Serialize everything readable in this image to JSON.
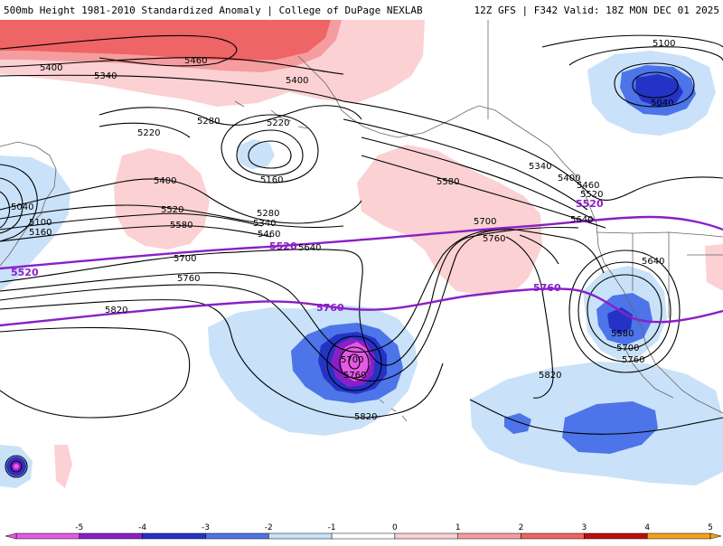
{
  "header": {
    "title": "500mb Height 1981-2010 Standardized Anomaly | College of DuPage NEXLAB",
    "run_info": "12Z GFS | F342 Valid: 18Z MON DEC 01 2025"
  },
  "colors": {
    "purple_contour": "#8a1fc7",
    "neg5": "#e45ae4",
    "neg4": "#8a1fc7",
    "neg3": "#2433c6",
    "neg2": "#4d74e8",
    "neg1": "#c9e2f9",
    "pos1": "#fbd1d3",
    "pos2": "#f59c9e",
    "pos3": "#ef6464",
    "pos4": "#bf0d0d",
    "pos5": "#f3a21a"
  },
  "legend": {
    "ticks": [
      "-5",
      "-4",
      "-3",
      "-2",
      "-1",
      "0",
      "1",
      "2",
      "3",
      "4",
      "5"
    ],
    "segments": [
      "#e45ae4",
      "#8a1fc7",
      "#2433c6",
      "#4d74e8",
      "#c9e2f9",
      "#ffffff",
      "#fbd1d3",
      "#f59c9e",
      "#ef6464",
      "#bf0d0d",
      "#f3a21a"
    ]
  },
  "contour_labels": [
    {
      "text": "5460",
      "kind": "black"
    },
    {
      "text": "5400",
      "kind": "black"
    },
    {
      "text": "5340",
      "kind": "black"
    },
    {
      "text": "5400",
      "kind": "black"
    },
    {
      "text": "5280",
      "kind": "black"
    },
    {
      "text": "5220",
      "kind": "black"
    },
    {
      "text": "5220",
      "kind": "black"
    },
    {
      "text": "5160",
      "kind": "black"
    },
    {
      "text": "5400",
      "kind": "black"
    },
    {
      "text": "5520",
      "kind": "black"
    },
    {
      "text": "5580",
      "kind": "black"
    },
    {
      "text": "5280",
      "kind": "black"
    },
    {
      "text": "5340",
      "kind": "black"
    },
    {
      "text": "5460",
      "kind": "black"
    },
    {
      "text": "5700",
      "kind": "black"
    },
    {
      "text": "5760",
      "kind": "black"
    },
    {
      "text": "5820",
      "kind": "black"
    },
    {
      "text": "5040",
      "kind": "black"
    },
    {
      "text": "5100",
      "kind": "black"
    },
    {
      "text": "5160",
      "kind": "black"
    },
    {
      "text": "5640",
      "kind": "black"
    },
    {
      "text": "5580",
      "kind": "black"
    },
    {
      "text": "5700",
      "kind": "black"
    },
    {
      "text": "5760",
      "kind": "black"
    },
    {
      "text": "5700",
      "kind": "black"
    },
    {
      "text": "5760",
      "kind": "black"
    },
    {
      "text": "5820",
      "kind": "black"
    },
    {
      "text": "5820",
      "kind": "black"
    },
    {
      "text": "5100",
      "kind": "black"
    },
    {
      "text": "5040",
      "kind": "black"
    },
    {
      "text": "5340",
      "kind": "black"
    },
    {
      "text": "5400",
      "kind": "black"
    },
    {
      "text": "5460",
      "kind": "black"
    },
    {
      "text": "5520",
      "kind": "black"
    },
    {
      "text": "5640",
      "kind": "black"
    },
    {
      "text": "5640",
      "kind": "black"
    },
    {
      "text": "5580",
      "kind": "black"
    },
    {
      "text": "5700",
      "kind": "black"
    },
    {
      "text": "5760",
      "kind": "black"
    },
    {
      "text": "5520",
      "kind": "purple"
    },
    {
      "text": "5520",
      "kind": "purple"
    },
    {
      "text": "5520",
      "kind": "purple"
    },
    {
      "text": "5760",
      "kind": "purple"
    },
    {
      "text": "5760",
      "kind": "purple"
    }
  ]
}
